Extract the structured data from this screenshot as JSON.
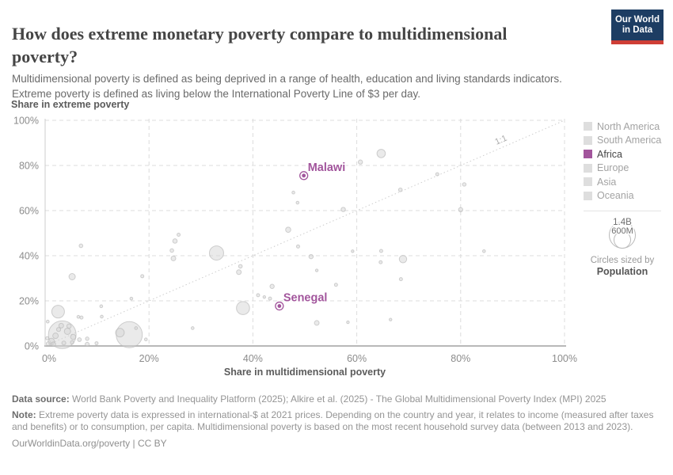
{
  "header": {
    "title": "How does extreme monetary poverty compare to multidimensional poverty?",
    "subtitle_line1": "Multidimensional poverty is defined as being deprived in a range of health, education and living standards indicators.",
    "subtitle_line2": "Extreme poverty is defined as living below the International Poverty Line of $3 per day.",
    "logo": {
      "line1": "Our World",
      "line2": "in Data"
    }
  },
  "theme": {
    "accent": "#a2559c",
    "navy": "#1d3d63",
    "red": "#cf3e36",
    "grid": "#dcdcdc",
    "bubble_fill": "#d6d6d6",
    "bubble_stroke": "#b7b7b7"
  },
  "chart_data": {
    "type": "scatter",
    "title": "How does extreme monetary poverty compare to multidimensional poverty?",
    "xlabel": "Share in multidimensional poverty",
    "ylabel": "Share in extreme poverty",
    "xlim": [
      0,
      100
    ],
    "ylim": [
      0,
      100
    ],
    "x_ticks": [
      0,
      20,
      40,
      60,
      80,
      100
    ],
    "y_ticks": [
      0,
      20,
      40,
      60,
      80,
      100
    ],
    "tick_suffix": "%",
    "grid": true,
    "diagonal_label": "1:1",
    "legend_position": "right",
    "highlighted_points": [
      {
        "name": "Malawi",
        "x": 49.8,
        "y": 75.5
      },
      {
        "name": "Senegal",
        "x": 45.1,
        "y": 17.7
      }
    ],
    "background_points": [
      [
        3.3,
        5,
        17.5
      ],
      [
        16.2,
        5,
        16.5
      ],
      [
        14.4,
        5.9,
        5.5
      ],
      [
        2.5,
        15.2,
        8
      ],
      [
        3.1,
        9,
        3
      ],
      [
        1.2,
        2,
        4
      ],
      [
        2.0,
        4.5,
        3.5
      ],
      [
        4.3,
        6.5,
        4
      ],
      [
        5.4,
        4,
        3.3
      ],
      [
        0.6,
        1,
        2.5
      ],
      [
        1.6,
        0.8,
        2.8
      ],
      [
        3.6,
        1.3,
        2.5
      ],
      [
        5.2,
        1.6,
        2.2
      ],
      [
        6.6,
        2.8,
        2.4
      ],
      [
        0.4,
        3.4,
        2
      ],
      [
        2.6,
        7.3,
        2.6
      ],
      [
        4.6,
        8.8,
        2.8
      ],
      [
        7,
        12.6,
        2
      ],
      [
        8.1,
        3.2,
        2.2
      ],
      [
        8.1,
        0.7,
        2.6
      ],
      [
        9.9,
        1.2,
        2
      ],
      [
        10.8,
        17.6,
        1.8
      ],
      [
        10.9,
        13,
        1.8
      ],
      [
        6.4,
        12.9,
        1.8
      ],
      [
        0.5,
        10.8,
        1.8
      ],
      [
        16.6,
        21,
        1.8
      ],
      [
        17.5,
        7.9,
        1.8
      ],
      [
        19.4,
        2.9,
        1.8
      ],
      [
        28.4,
        7.9,
        1.8
      ],
      [
        5.2,
        30.7,
        4
      ],
      [
        6.9,
        44.4,
        2.3
      ],
      [
        18.7,
        30.9,
        2
      ],
      [
        25.7,
        49.3,
        2
      ],
      [
        25,
        46.5,
        2.8
      ],
      [
        24.4,
        42.3,
        2.3
      ],
      [
        24.7,
        38.8,
        3
      ],
      [
        33,
        41.2,
        9
      ],
      [
        37.6,
        35.3,
        2.3
      ],
      [
        37.3,
        32.7,
        3
      ],
      [
        38.1,
        16.8,
        8.3
      ],
      [
        43.7,
        26.4,
        2.7
      ],
      [
        41,
        22.5,
        2
      ],
      [
        42.2,
        21.7,
        1.7
      ],
      [
        43.3,
        21,
        2
      ],
      [
        48.7,
        44.1,
        2
      ],
      [
        46.8,
        51.5,
        3.3
      ],
      [
        47.8,
        68,
        1.8
      ],
      [
        48.6,
        63.5,
        1.8
      ],
      [
        57.4,
        60.5,
        2.7
      ],
      [
        60.7,
        81.5,
        2.7
      ],
      [
        64.7,
        85.3,
        5.3
      ],
      [
        68.4,
        69.2,
        2.3
      ],
      [
        75.5,
        76.1,
        2
      ],
      [
        80.7,
        71.6,
        2.2
      ],
      [
        80,
        60.4,
        2.7
      ],
      [
        84.5,
        42,
        1.8
      ],
      [
        51.2,
        39.6,
        2.7
      ],
      [
        52.3,
        33.5,
        1.7
      ],
      [
        56,
        27.1,
        2
      ],
      [
        59.2,
        42,
        1.7
      ],
      [
        64.7,
        42.1,
        2
      ],
      [
        64.6,
        37.1,
        2
      ],
      [
        68.9,
        38.5,
        4.7
      ],
      [
        68.5,
        29.6,
        2
      ],
      [
        66.5,
        11.7,
        1.7
      ],
      [
        52.3,
        10.2,
        3
      ],
      [
        58.3,
        10.5,
        1.7
      ]
    ]
  },
  "legend": {
    "items": [
      {
        "label": "North America",
        "active": false
      },
      {
        "label": "South America",
        "active": false
      },
      {
        "label": "Africa",
        "active": true
      },
      {
        "label": "Europe",
        "active": false
      },
      {
        "label": "Asia",
        "active": false
      },
      {
        "label": "Oceania",
        "active": false
      }
    ],
    "size_legend": {
      "big_label": "1.4B",
      "small_label": "600M",
      "caption": "Circles sized by",
      "caption_bold": "Population"
    }
  },
  "footer": {
    "datasource_label": "Data source:",
    "datasource": "World Bank Poverty and Inequality Platform (2025); Alkire et al. (2025) - The Global Multidimensional Poverty Index (MPI) 2025",
    "note_label": "Note:",
    "note": "Extreme poverty data is expressed in international-$ at 2021 prices. Depending on the country and year, it relates to income (measured after taxes and benefits) or to consumption, per capita. Multidimensional poverty is based on the most recent household survey data (between 2013 and 2023).",
    "link": "OurWorldinData.org/poverty | CC BY"
  }
}
